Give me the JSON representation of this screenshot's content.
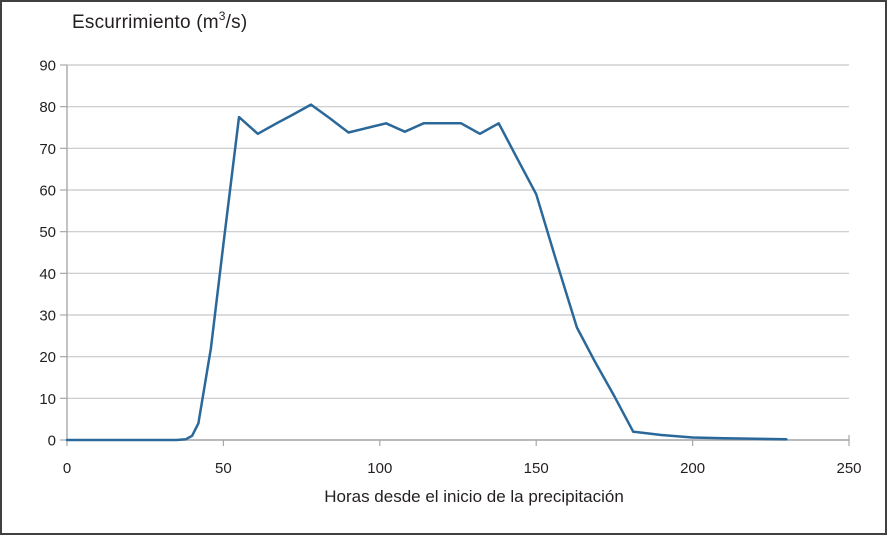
{
  "figure": {
    "title_prefix": "Escurrimiento (m",
    "title_sup": "3",
    "title_suffix": "/s)",
    "x_axis_label": "Horas desde el inicio de la precipitación"
  },
  "colors": {
    "line": "#2b689a",
    "gridline": "#c6c8ca",
    "axis": "#a5a8ab",
    "text": "#231f20",
    "border": "#404041",
    "background": "#ffffff"
  },
  "chart_data": {
    "type": "line",
    "title": "Escurrimiento (m³/s)",
    "xlabel": "Horas desde el inicio de la precipitación",
    "ylabel": "Escurrimiento (m³/s)",
    "xlim": [
      0,
      250
    ],
    "ylim": [
      0,
      90
    ],
    "x_ticks": [
      0,
      50,
      100,
      150,
      200,
      250
    ],
    "y_ticks": [
      0,
      10,
      20,
      30,
      40,
      50,
      60,
      70,
      80,
      90
    ],
    "grid": "horizontal",
    "legend": "none",
    "line_color": "#2b689a",
    "series": [
      {
        "name": "Escurrimiento",
        "points": [
          [
            0,
            0
          ],
          [
            10,
            0
          ],
          [
            20,
            0
          ],
          [
            30,
            0
          ],
          [
            35,
            0
          ],
          [
            38,
            0.2
          ],
          [
            40,
            1
          ],
          [
            42,
            4
          ],
          [
            46,
            22
          ],
          [
            50,
            47
          ],
          [
            55,
            77.5
          ],
          [
            61,
            73.5
          ],
          [
            67,
            76
          ],
          [
            72,
            78
          ],
          [
            78,
            80.5
          ],
          [
            84,
            77.2
          ],
          [
            90,
            73.8
          ],
          [
            96,
            74.9
          ],
          [
            102,
            76
          ],
          [
            108,
            74
          ],
          [
            114,
            76
          ],
          [
            120,
            76
          ],
          [
            126,
            76
          ],
          [
            132,
            73.5
          ],
          [
            138,
            76
          ],
          [
            144,
            67.5
          ],
          [
            150,
            59
          ],
          [
            156,
            44
          ],
          [
            163,
            27
          ],
          [
            169,
            18.5
          ],
          [
            175,
            10.5
          ],
          [
            181,
            2
          ],
          [
            190,
            1.2
          ],
          [
            200,
            0.6
          ],
          [
            210,
            0.4
          ],
          [
            220,
            0.3
          ],
          [
            230,
            0.2
          ]
        ]
      }
    ]
  }
}
